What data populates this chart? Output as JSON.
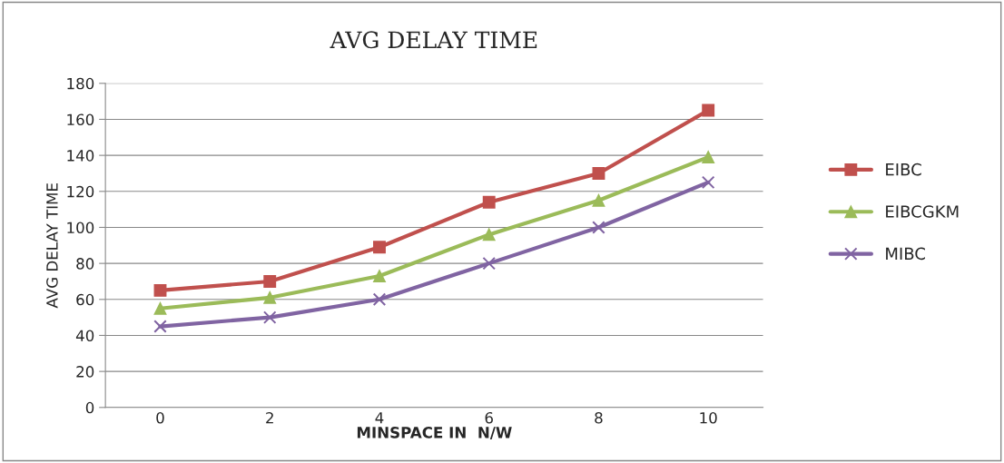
{
  "chart_data": {
    "type": "line",
    "title": "AVG DELAY TIME",
    "xlabel": "MINSPACE IN  N/W",
    "ylabel": "AVG DELAY TIME",
    "categories": [
      "0",
      "2",
      "4",
      "6",
      "8",
      "10"
    ],
    "series": [
      {
        "name": "EIBC",
        "color": "#c0504d",
        "marker": "square",
        "values": [
          65,
          70,
          89,
          114,
          130,
          165
        ]
      },
      {
        "name": "EIBCGKM",
        "color": "#9bbb59",
        "marker": "triangle",
        "values": [
          55,
          61,
          73,
          96,
          115,
          139
        ]
      },
      {
        "name": "MIBC",
        "color": "#8064a2",
        "marker": "cross",
        "values": [
          45,
          50,
          60,
          80,
          100,
          125
        ]
      }
    ],
    "ylim": [
      0,
      180
    ],
    "yticks": [
      0,
      20,
      40,
      60,
      80,
      100,
      120,
      140,
      160,
      180
    ],
    "grid": "y",
    "legend": "right",
    "line_style": "solid"
  }
}
